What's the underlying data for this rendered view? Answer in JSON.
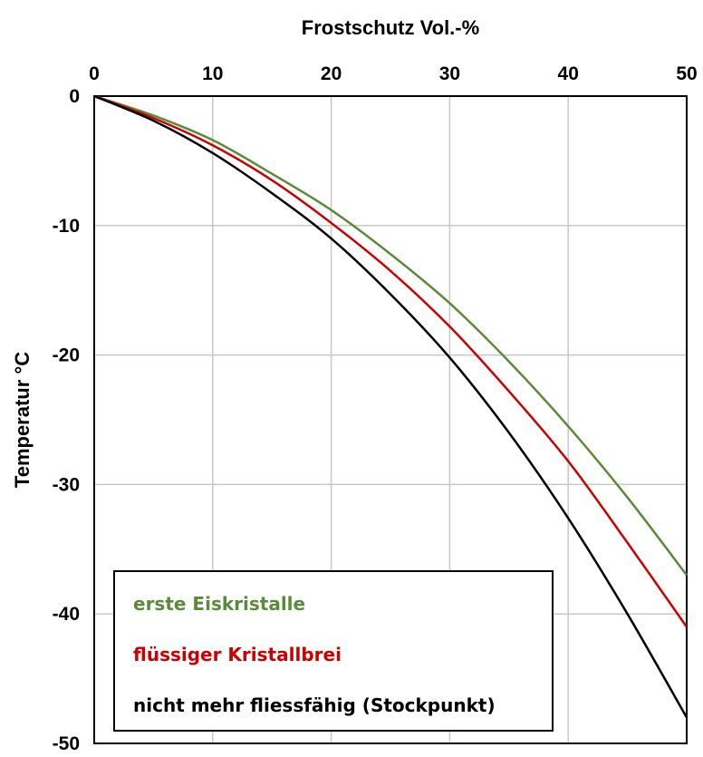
{
  "chart_data": {
    "type": "line",
    "xlabel": "Frostschutz Vol.-%",
    "ylabel": "Temperatur °C",
    "xlim": [
      0,
      50
    ],
    "ylim": [
      -50,
      0
    ],
    "x_ticks": [
      0,
      10,
      20,
      30,
      40,
      50
    ],
    "y_ticks": [
      0,
      -10,
      -20,
      -30,
      -40,
      -50
    ],
    "x_axis_position": "top",
    "grid": true,
    "legend_position": "bottom-left",
    "series": [
      {
        "name": "erste Eiskristalle",
        "color": "#5b8a3a",
        "x": [
          0,
          5,
          10,
          15,
          20,
          25,
          30,
          35,
          40,
          45,
          50
        ],
        "y": [
          0,
          -1.5,
          -3.4,
          -6.0,
          -8.8,
          -12.2,
          -16.0,
          -20.5,
          -25.5,
          -31.0,
          -37.0
        ]
      },
      {
        "name": "flüssiger Kristallbrei",
        "color": "#cc0000",
        "x": [
          0,
          5,
          10,
          15,
          20,
          25,
          30,
          35,
          40,
          45,
          50
        ],
        "y": [
          0,
          -1.7,
          -3.8,
          -6.5,
          -9.8,
          -13.5,
          -17.8,
          -22.8,
          -28.2,
          -34.5,
          -41.0
        ]
      },
      {
        "name": "nicht mehr fliessfähig (Stockpunkt)",
        "color": "#000000",
        "x": [
          0,
          5,
          10,
          15,
          20,
          25,
          30,
          35,
          40,
          45,
          50
        ],
        "y": [
          0,
          -1.9,
          -4.4,
          -7.5,
          -11.0,
          -15.3,
          -20.2,
          -26.0,
          -32.6,
          -40.0,
          -48.0
        ]
      }
    ]
  }
}
